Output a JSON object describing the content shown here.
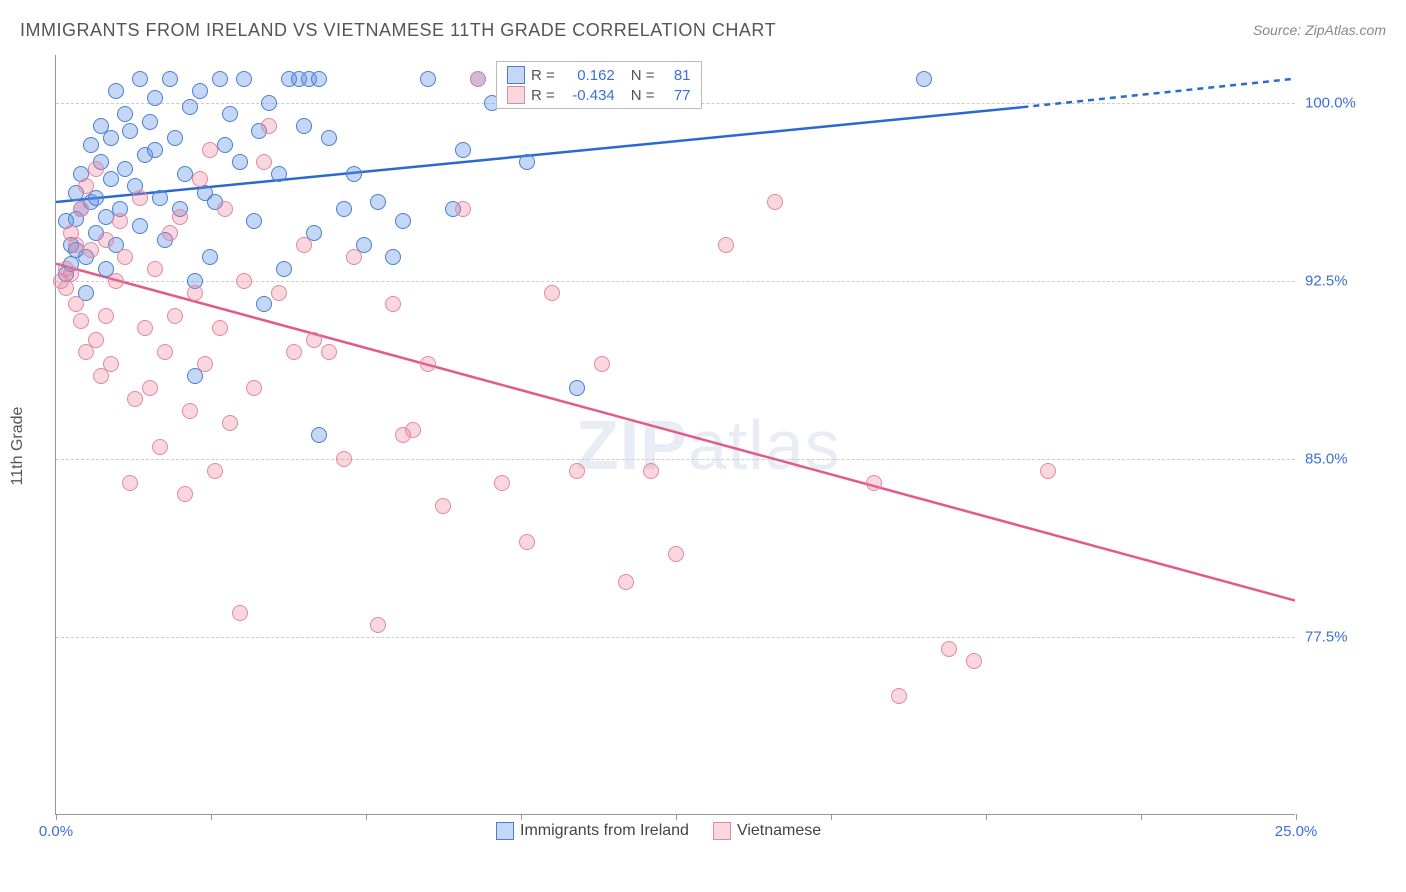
{
  "title": "IMMIGRANTS FROM IRELAND VS VIETNAMESE 11TH GRADE CORRELATION CHART",
  "source": "Source: ZipAtlas.com",
  "ylabel": "11th Grade",
  "watermark": {
    "prefix": "ZIP",
    "suffix": "atlas"
  },
  "chart": {
    "type": "scatter",
    "xlim": [
      0,
      25
    ],
    "ylim": [
      70,
      102
    ],
    "xticks": [
      0,
      3.125,
      6.25,
      9.375,
      12.5,
      15.625,
      18.75,
      21.875,
      25
    ],
    "xtick_labels": {
      "0": "0.0%",
      "25": "25.0%"
    },
    "yticks": [
      77.5,
      85.0,
      92.5,
      100.0
    ],
    "ytick_labels": [
      "77.5%",
      "85.0%",
      "92.5%",
      "100.0%"
    ],
    "background_color": "#ffffff",
    "grid_color": "#cccccc",
    "axis_color": "#999999",
    "tick_label_color": "#3b6fd6"
  },
  "series": [
    {
      "name": "Immigrants from Ireland",
      "fill": "rgba(90,140,230,0.35)",
      "stroke": "#4a7fd0",
      "trend_color": "#2a6ad0",
      "R": "0.162",
      "N": "81",
      "trend": {
        "x1": 0,
        "y1": 95.8,
        "x2": 19.5,
        "y2": 99.8,
        "x2_dash": 25,
        "y2_dash": 101.0
      },
      "points": [
        [
          0.2,
          92.8
        ],
        [
          0.3,
          93.2
        ],
        [
          0.3,
          94.0
        ],
        [
          0.4,
          95.1
        ],
        [
          0.4,
          96.2
        ],
        [
          0.5,
          95.5
        ],
        [
          0.5,
          97.0
        ],
        [
          0.6,
          92.0
        ],
        [
          0.6,
          93.5
        ],
        [
          0.7,
          95.8
        ],
        [
          0.7,
          98.2
        ],
        [
          0.8,
          94.5
        ],
        [
          0.8,
          96.0
        ],
        [
          0.9,
          97.5
        ],
        [
          0.9,
          99.0
        ],
        [
          1.0,
          95.2
        ],
        [
          1.1,
          96.8
        ],
        [
          1.1,
          98.5
        ],
        [
          1.2,
          94.0
        ],
        [
          1.2,
          100.5
        ],
        [
          1.3,
          95.5
        ],
        [
          1.4,
          97.2
        ],
        [
          1.4,
          99.5
        ],
        [
          1.5,
          98.8
        ],
        [
          1.6,
          96.5
        ],
        [
          1.7,
          94.8
        ],
        [
          1.7,
          101.0
        ],
        [
          1.8,
          97.8
        ],
        [
          1.9,
          99.2
        ],
        [
          2.0,
          98.0
        ],
        [
          2.0,
          100.2
        ],
        [
          2.1,
          96.0
        ],
        [
          2.2,
          94.2
        ],
        [
          2.3,
          101.0
        ],
        [
          2.4,
          98.5
        ],
        [
          2.5,
          95.5
        ],
        [
          2.6,
          97.0
        ],
        [
          2.7,
          99.8
        ],
        [
          2.8,
          88.5
        ],
        [
          2.9,
          100.5
        ],
        [
          3.0,
          96.2
        ],
        [
          3.1,
          93.5
        ],
        [
          3.3,
          101.0
        ],
        [
          3.4,
          98.2
        ],
        [
          3.5,
          99.5
        ],
        [
          3.7,
          97.5
        ],
        [
          3.8,
          101.0
        ],
        [
          4.0,
          95.0
        ],
        [
          4.1,
          98.8
        ],
        [
          4.3,
          100.0
        ],
        [
          4.5,
          97.0
        ],
        [
          4.6,
          93.0
        ],
        [
          4.7,
          101.0
        ],
        [
          4.9,
          101.0
        ],
        [
          5.0,
          99.0
        ],
        [
          5.1,
          101.0
        ],
        [
          5.2,
          94.5
        ],
        [
          5.3,
          86.0
        ],
        [
          5.3,
          101.0
        ],
        [
          4.2,
          91.5
        ],
        [
          5.5,
          98.5
        ],
        [
          3.2,
          95.8
        ],
        [
          5.8,
          95.5
        ],
        [
          6.0,
          97.0
        ],
        [
          6.2,
          94.0
        ],
        [
          6.5,
          95.8
        ],
        [
          6.8,
          93.5
        ],
        [
          7.0,
          95.0
        ],
        [
          7.5,
          101.0
        ],
        [
          8.0,
          95.5
        ],
        [
          8.2,
          98.0
        ],
        [
          8.5,
          101.0
        ],
        [
          8.8,
          100.0
        ],
        [
          9.5,
          97.5
        ],
        [
          10.2,
          101.0
        ],
        [
          10.5,
          88.0
        ],
        [
          17.5,
          101.0
        ],
        [
          1.0,
          93.0
        ],
        [
          2.8,
          92.5
        ],
        [
          0.2,
          95.0
        ],
        [
          0.4,
          93.8
        ]
      ]
    },
    {
      "name": "Vietnamese",
      "fill": "rgba(240,120,150,0.30)",
      "stroke": "#e08aa0",
      "trend_color": "#e35a85",
      "R": "-0.434",
      "N": "77",
      "trend": {
        "x1": 0,
        "y1": 93.2,
        "x2": 25,
        "y2": 79.0,
        "x2_dash": 25,
        "y2_dash": 79.0
      },
      "points": [
        [
          0.1,
          92.5
        ],
        [
          0.2,
          93.0
        ],
        [
          0.2,
          92.2
        ],
        [
          0.3,
          92.8
        ],
        [
          0.3,
          94.5
        ],
        [
          0.4,
          94.0
        ],
        [
          0.4,
          91.5
        ],
        [
          0.5,
          95.5
        ],
        [
          0.5,
          90.8
        ],
        [
          0.6,
          96.5
        ],
        [
          0.6,
          89.5
        ],
        [
          0.7,
          93.8
        ],
        [
          0.8,
          90.0
        ],
        [
          0.8,
          97.2
        ],
        [
          0.9,
          88.5
        ],
        [
          1.0,
          91.0
        ],
        [
          1.0,
          94.2
        ],
        [
          1.1,
          89.0
        ],
        [
          1.2,
          92.5
        ],
        [
          1.3,
          95.0
        ],
        [
          1.4,
          93.5
        ],
        [
          1.5,
          84.0
        ],
        [
          1.6,
          87.5
        ],
        [
          1.7,
          96.0
        ],
        [
          1.8,
          90.5
        ],
        [
          1.9,
          88.0
        ],
        [
          2.0,
          93.0
        ],
        [
          2.1,
          85.5
        ],
        [
          2.2,
          89.5
        ],
        [
          2.3,
          94.5
        ],
        [
          2.4,
          91.0
        ],
        [
          2.6,
          83.5
        ],
        [
          2.7,
          87.0
        ],
        [
          2.8,
          92.0
        ],
        [
          2.9,
          96.8
        ],
        [
          3.0,
          89.0
        ],
        [
          3.2,
          84.5
        ],
        [
          3.3,
          90.5
        ],
        [
          3.4,
          95.5
        ],
        [
          3.5,
          86.5
        ],
        [
          3.7,
          78.5
        ],
        [
          3.8,
          92.5
        ],
        [
          4.0,
          88.0
        ],
        [
          4.2,
          97.5
        ],
        [
          4.3,
          99.0
        ],
        [
          4.5,
          92.0
        ],
        [
          4.8,
          89.5
        ],
        [
          5.0,
          94.0
        ],
        [
          5.2,
          90.0
        ],
        [
          5.5,
          89.5
        ],
        [
          5.8,
          85.0
        ],
        [
          6.0,
          93.5
        ],
        [
          6.5,
          78.0
        ],
        [
          6.8,
          91.5
        ],
        [
          7.0,
          86.0
        ],
        [
          7.5,
          89.0
        ],
        [
          7.8,
          83.0
        ],
        [
          8.2,
          95.5
        ],
        [
          8.5,
          101.0
        ],
        [
          9.0,
          84.0
        ],
        [
          9.5,
          81.5
        ],
        [
          10.0,
          92.0
        ],
        [
          10.5,
          84.5
        ],
        [
          11.0,
          89.0
        ],
        [
          11.5,
          79.8
        ],
        [
          12.0,
          84.5
        ],
        [
          12.5,
          81.0
        ],
        [
          13.5,
          94.0
        ],
        [
          14.5,
          95.8
        ],
        [
          16.5,
          84.0
        ],
        [
          17.0,
          75.0
        ],
        [
          18.0,
          77.0
        ],
        [
          18.5,
          76.5
        ],
        [
          20.0,
          84.5
        ],
        [
          7.2,
          86.2
        ],
        [
          3.1,
          98.0
        ],
        [
          2.5,
          95.2
        ]
      ]
    }
  ],
  "legend_top": {
    "Rlabel": "R =",
    "Nlabel": "N ="
  },
  "legend_bottom_items": [
    "Immigrants from Ireland",
    "Vietnamese"
  ]
}
